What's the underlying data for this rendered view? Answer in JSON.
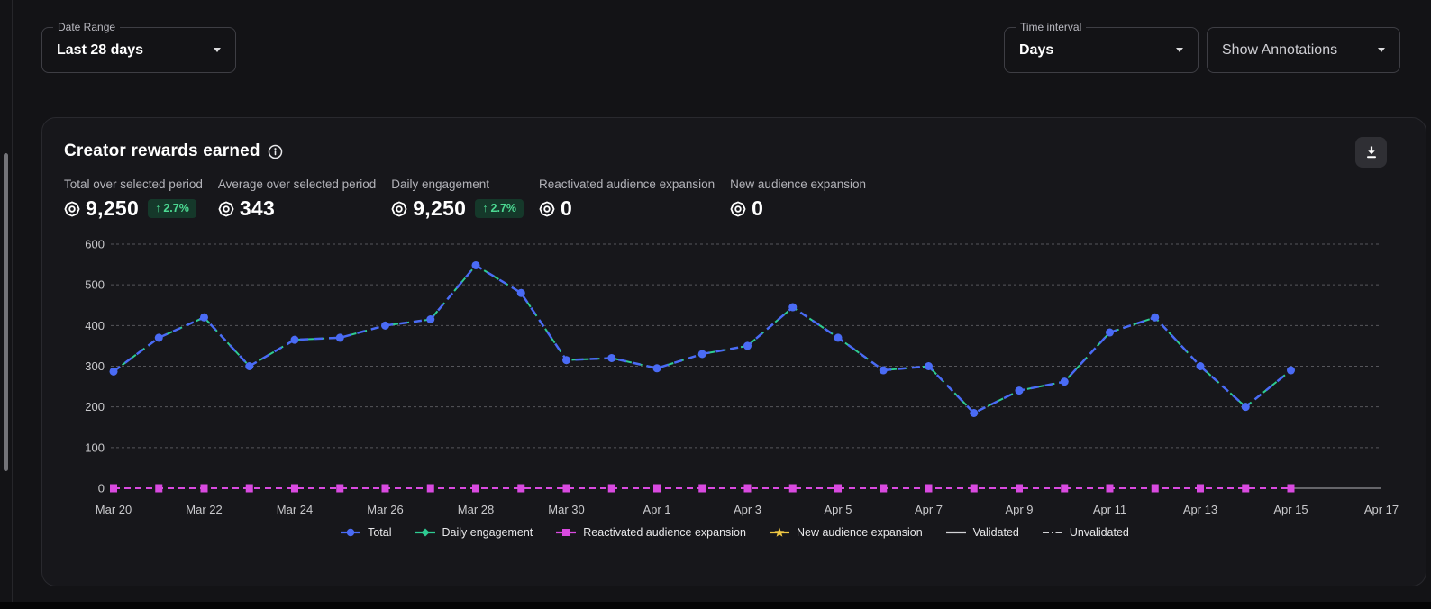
{
  "controls": {
    "date_range": {
      "label": "Date Range",
      "value": "Last 28 days"
    },
    "time_interval": {
      "label": "Time interval",
      "value": "Days"
    },
    "annotations": {
      "value": "Show Annotations"
    }
  },
  "card": {
    "title": "Creator rewards earned",
    "stats": [
      {
        "label": "Total over selected period",
        "value": "9,250",
        "delta_arrow": "↑",
        "delta": "2.7%"
      },
      {
        "label": "Average over selected period",
        "value": "343"
      },
      {
        "label": "Daily engagement",
        "value": "9,250",
        "delta_arrow": "↑",
        "delta": "2.7%"
      },
      {
        "label": "Reactivated audience expansion",
        "value": "0"
      },
      {
        "label": "New audience expansion",
        "value": "0"
      }
    ]
  },
  "chart_data": {
    "type": "line",
    "title": "Creator rewards earned",
    "x": [
      "Mar 20",
      "Mar 21",
      "Mar 22",
      "Mar 23",
      "Mar 24",
      "Mar 25",
      "Mar 26",
      "Mar 27",
      "Mar 28",
      "Mar 29",
      "Mar 30",
      "Mar 31",
      "Apr 1",
      "Apr 2",
      "Apr 3",
      "Apr 4",
      "Apr 5",
      "Apr 6",
      "Apr 7",
      "Apr 8",
      "Apr 9",
      "Apr 10",
      "Apr 11",
      "Apr 12",
      "Apr 13",
      "Apr 14",
      "Apr 15"
    ],
    "series": [
      {
        "name": "Total",
        "color": "#4a6bf5",
        "style": "dashed",
        "marker": "circle",
        "values": [
          287,
          370,
          420,
          300,
          365,
          370,
          400,
          415,
          548,
          480,
          315,
          320,
          295,
          330,
          350,
          445,
          370,
          290,
          300,
          185,
          240,
          262,
          383,
          420,
          300,
          200,
          290
        ]
      },
      {
        "name": "Daily engagement",
        "color": "#2ecb92",
        "style": "dashed",
        "marker": "diamond",
        "values": [
          287,
          370,
          420,
          300,
          365,
          370,
          400,
          415,
          548,
          480,
          315,
          320,
          295,
          330,
          350,
          445,
          370,
          290,
          300,
          185,
          240,
          262,
          383,
          420,
          300,
          200,
          290
        ]
      },
      {
        "name": "Reactivated audience expansion",
        "color": "#d94ae0",
        "style": "dashed",
        "marker": "square",
        "values": [
          0,
          0,
          0,
          0,
          0,
          0,
          0,
          0,
          0,
          0,
          0,
          0,
          0,
          0,
          0,
          0,
          0,
          0,
          0,
          0,
          0,
          0,
          0,
          0,
          0,
          0,
          0
        ]
      },
      {
        "name": "New audience expansion",
        "color": "#eec643",
        "style": "dashed",
        "marker": "star",
        "values": [
          0,
          0,
          0,
          0,
          0,
          0,
          0,
          0,
          0,
          0,
          0,
          0,
          0,
          0,
          0,
          0,
          0,
          0,
          0,
          0,
          0,
          0,
          0,
          0,
          0,
          0,
          0
        ]
      }
    ],
    "xticks": [
      "Mar 20",
      "Mar 22",
      "Mar 24",
      "Mar 26",
      "Mar 28",
      "Mar 30",
      "Apr 1",
      "Apr 3",
      "Apr 5",
      "Apr 7",
      "Apr 9",
      "Apr 11",
      "Apr 13",
      "Apr 15",
      "Apr 17"
    ],
    "yticks": [
      0,
      100,
      200,
      300,
      400,
      500,
      600
    ],
    "ylim": [
      0,
      600
    ],
    "x_total_days": 28,
    "grid": "dashed-horizontal",
    "legend_position": "bottom",
    "baseline_extension": {
      "from_day_index": 26,
      "to_day_index": 28,
      "color": "#94949a"
    }
  },
  "legend": [
    {
      "label": "Total",
      "marker": "circle",
      "color": "#4a6bf5"
    },
    {
      "label": "Daily engagement",
      "marker": "diamond",
      "color": "#2ecb92"
    },
    {
      "label": "Reactivated audience expansion",
      "marker": "square",
      "color": "#d94ae0"
    },
    {
      "label": "New audience expansion",
      "marker": "star",
      "color": "#eec643"
    },
    {
      "label": "Validated",
      "marker": "line",
      "color": "#d2d2d6"
    },
    {
      "label": "Unvalidated",
      "marker": "dashline",
      "color": "#d2d2d6"
    }
  ],
  "icons": {
    "title_info": "info-icon",
    "export": "download-icon",
    "dropdown_caret": "chevron-down-icon",
    "stat_coin": "coin-icon"
  },
  "colors": {
    "page_bg": "#131316",
    "card_bg": "#17171b",
    "accent_blue": "#4a6bf5",
    "magenta": "#d94ae0",
    "green": "#2ecb92",
    "yellow": "#eec643",
    "badge_bg": "#15382a",
    "badge_text": "#4cd992",
    "gridline": "#56565b",
    "axis_text": "#c9c9cc"
  }
}
